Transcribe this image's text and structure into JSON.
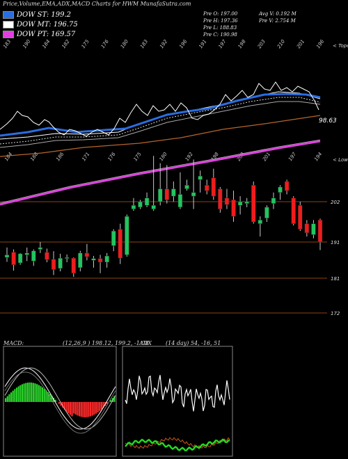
{
  "header": "Price,Volume,EMA,ADX,MACD Charts for HWM MunafaSutra.com",
  "legend": [
    {
      "label": "DOW ST: 199.2",
      "color": "#2a6de0"
    },
    {
      "label": "DOW MT: 196.75",
      "color": "#ffffff"
    },
    {
      "label": "DOW PT: 169.57",
      "color": "#e040e0"
    }
  ],
  "stats": {
    "pre_o": "Pre   O: 197.00",
    "pre_h": "Pre   H: 197.36",
    "pre_l": "Pre   L: 188.83",
    "pre_c": "Pre   C: 190.98",
    "avg_v": "Avg V: 0.192  M",
    "pre_v": "Pre   V: 2.754  M"
  },
  "top_ticks": [
    "183",
    "190",
    "184",
    "182",
    "175",
    "176",
    "180",
    "183",
    "192",
    "196",
    "191",
    "197",
    "198",
    "203",
    "210",
    "201",
    "196"
  ],
  "bottom_ticks": [
    "184",
    "188",
    "186",
    "171",
    "176",
    "175",
    "180",
    "192",
    "198",
    "203",
    "201",
    "197",
    "194"
  ],
  "label_tope": "< Tope",
  "label_lowe": "< Lowe",
  "ema_value": "98.63",
  "price_levels": [
    "202",
    "191",
    "181",
    "172"
  ],
  "macd_label": "MACD:",
  "macd_values": "(12,26,9 ) 198.12,  199.2,  -1.08",
  "adx_label": "ADX",
  "adx_values": "(14  day) 54,  -16,  51",
  "colors": {
    "up": "#22c55e",
    "down": "#ef1c1c",
    "ema_st": "#2a6de0",
    "ema_pt": "#e040e0",
    "ema_lt": "#b8652a",
    "hline": "#8b4513"
  },
  "chart_data": {
    "type": "candlestick",
    "title": "Price,Volume,EMA,ADX,MACD Charts for HWM MunafaSutra.com",
    "y_levels": [
      202,
      191,
      181,
      172
    ],
    "candles": [
      {
        "o": 186.8,
        "h": 189.5,
        "l": 185.6,
        "c": 187.5
      },
      {
        "o": 188.2,
        "h": 189.0,
        "l": 183.2,
        "c": 184.8
      },
      {
        "o": 185.3,
        "h": 188.0,
        "l": 184.8,
        "c": 187.8
      },
      {
        "o": 187.5,
        "h": 189.5,
        "l": 185.8,
        "c": 188.0
      },
      {
        "o": 185.8,
        "h": 189.0,
        "l": 184.5,
        "c": 188.6
      },
      {
        "o": 189.0,
        "h": 191.0,
        "l": 188.0,
        "c": 189.5
      },
      {
        "o": 188.2,
        "h": 189.2,
        "l": 185.5,
        "c": 186.2
      },
      {
        "o": 186.3,
        "h": 188.5,
        "l": 182.0,
        "c": 183.5
      },
      {
        "o": 183.8,
        "h": 187.8,
        "l": 183.0,
        "c": 186.6
      },
      {
        "o": 186.5,
        "h": 187.6,
        "l": 185.5,
        "c": 186.8
      },
      {
        "o": 186.6,
        "h": 186.8,
        "l": 181.5,
        "c": 182.5
      },
      {
        "o": 184.0,
        "h": 188.6,
        "l": 183.0,
        "c": 188.0
      },
      {
        "o": 188.0,
        "h": 190.5,
        "l": 186.0,
        "c": 187.0
      },
      {
        "o": 186.0,
        "h": 187.2,
        "l": 184.0,
        "c": 186.5
      },
      {
        "o": 186.5,
        "h": 187.5,
        "l": 182.5,
        "c": 185.5
      },
      {
        "o": 185.5,
        "h": 188.0,
        "l": 184.0,
        "c": 187.2
      },
      {
        "o": 190.0,
        "h": 194.5,
        "l": 188.5,
        "c": 194.0
      },
      {
        "o": 194.5,
        "h": 196.0,
        "l": 185.0,
        "c": 186.6
      },
      {
        "o": 187.5,
        "h": 198.5,
        "l": 187.0,
        "c": 198.0
      },
      {
        "o": 200.0,
        "h": 203.0,
        "l": 199.5,
        "c": 201.0
      },
      {
        "o": 200.5,
        "h": 202.5,
        "l": 200.0,
        "c": 202.0
      },
      {
        "o": 201.0,
        "h": 204.5,
        "l": 200.5,
        "c": 203.0
      },
      {
        "o": 200.0,
        "h": 214.5,
        "l": 199.5,
        "c": 201.0
      },
      {
        "o": 202.0,
        "h": 212.5,
        "l": 201.0,
        "c": 205.5
      },
      {
        "o": 205.5,
        "h": 212.0,
        "l": 201.5,
        "c": 202.5
      },
      {
        "o": 203.5,
        "h": 207.5,
        "l": 202.0,
        "c": 205.5
      },
      {
        "o": 200.5,
        "h": 210.0,
        "l": 200.0,
        "c": 204.0
      },
      {
        "o": 205.5,
        "h": 208.0,
        "l": 205.0,
        "c": 206.5
      },
      {
        "o": 203.5,
        "h": 213.5,
        "l": 200.0,
        "c": 204.5
      },
      {
        "o": 208.0,
        "h": 210.5,
        "l": 204.5,
        "c": 209.0
      },
      {
        "o": 206.5,
        "h": 208.0,
        "l": 204.0,
        "c": 205.0
      },
      {
        "o": 208.5,
        "h": 211.0,
        "l": 202.5,
        "c": 203.5
      },
      {
        "o": 205.5,
        "h": 206.0,
        "l": 199.0,
        "c": 200.0
      },
      {
        "o": 203.0,
        "h": 205.5,
        "l": 200.0,
        "c": 201.2
      },
      {
        "o": 202.5,
        "h": 205.0,
        "l": 196.5,
        "c": 198.0
      },
      {
        "o": 201.0,
        "h": 203.5,
        "l": 198.5,
        "c": 202.0
      },
      {
        "o": 201.5,
        "h": 203.0,
        "l": 200.5,
        "c": 202.0
      },
      {
        "o": 206.5,
        "h": 207.5,
        "l": 196.0,
        "c": 196.5
      },
      {
        "o": 196.0,
        "h": 198.0,
        "l": 192.5,
        "c": 197.0
      },
      {
        "o": 197.5,
        "h": 201.0,
        "l": 196.5,
        "c": 200.5
      },
      {
        "o": 201.5,
        "h": 204.5,
        "l": 200.0,
        "c": 203.0
      },
      {
        "o": 204.5,
        "h": 206.5,
        "l": 202.5,
        "c": 206.0
      },
      {
        "o": 207.5,
        "h": 208.0,
        "l": 204.0,
        "c": 205.0
      },
      {
        "o": 203.0,
        "h": 203.5,
        "l": 195.5,
        "c": 196.0
      },
      {
        "o": 201.0,
        "h": 202.0,
        "l": 194.0,
        "c": 194.5
      },
      {
        "o": 196.0,
        "h": 197.0,
        "l": 192.5,
        "c": 193.5
      },
      {
        "o": 193.0,
        "h": 197.0,
        "l": 192.0,
        "c": 196.0
      },
      {
        "o": 197.0,
        "h": 197.4,
        "l": 188.8,
        "c": 191.0
      }
    ]
  }
}
